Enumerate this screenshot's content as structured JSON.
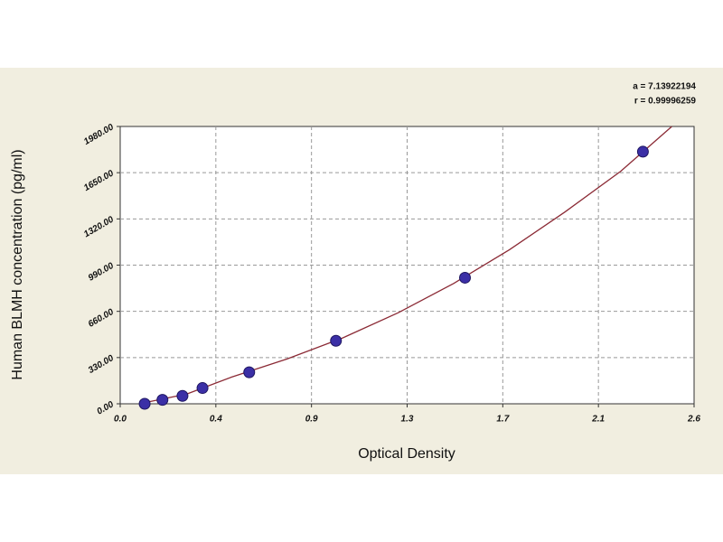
{
  "chart_data": {
    "type": "scatter",
    "x_label": "Optical Density",
    "y_label": "Human BLMH concentration (pg/ml)",
    "annotations": [
      "a = 7.13922194",
      "r = 0.99996259"
    ],
    "points": {
      "color": "#3b2fa6",
      "x": [
        0.11,
        0.19,
        0.28,
        0.37,
        0.58,
        0.97,
        1.55,
        2.35
      ],
      "y": [
        0,
        28.1,
        56.3,
        112.5,
        225,
        450,
        900,
        1800
      ]
    },
    "curve": {
      "color": "#8b2a35",
      "x": [
        0.1,
        0.3,
        0.5,
        0.75,
        1.0,
        1.25,
        1.5,
        1.75,
        2.0,
        2.25,
        2.48
      ],
      "y": [
        5,
        70,
        190,
        320,
        470,
        650,
        860,
        1100,
        1370,
        1660,
        1980
      ]
    },
    "xlim": [
      0,
      2.58
    ],
    "ylim": [
      0,
      1980
    ],
    "xticks": [
      {
        "value": 0,
        "label": "0.0"
      },
      {
        "value": 0.43,
        "label": "0.4"
      },
      {
        "value": 0.86,
        "label": "0.9"
      },
      {
        "value": 1.29,
        "label": "1.3"
      },
      {
        "value": 1.72,
        "label": "1.7"
      },
      {
        "value": 2.15,
        "label": "2.1"
      },
      {
        "value": 2.58,
        "label": "2.6"
      }
    ],
    "yticks": [
      {
        "value": 0,
        "label": "0.00"
      },
      {
        "value": 330,
        "label": "330.00"
      },
      {
        "value": 660,
        "label": "660.00"
      },
      {
        "value": 990,
        "label": "990.00"
      },
      {
        "value": 1320,
        "label": "1320.00"
      },
      {
        "value": 1650,
        "label": "1650.00"
      },
      {
        "value": 1980,
        "label": "1980.00"
      }
    ],
    "grid": true
  }
}
